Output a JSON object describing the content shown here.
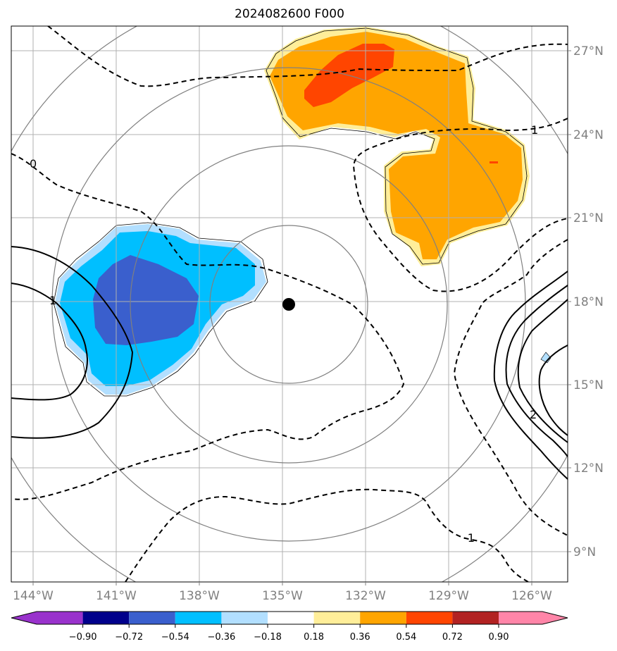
{
  "title": "2024082600 F000",
  "x_ticks": [
    "144°W",
    "141°W",
    "138°W",
    "135°W",
    "132°W",
    "129°W",
    "126°W"
  ],
  "y_ticks": [
    "27°N",
    "24°N",
    "21°N",
    "18°N",
    "15°N",
    "12°N",
    "9°N"
  ],
  "contour_labels": [
    "0",
    "1",
    "1",
    "2",
    "-1"
  ],
  "colorbar": {
    "tick_labels": [
      "−0.90",
      "−0.72",
      "−0.54",
      "−0.36",
      "−0.18",
      "0.18",
      "0.36",
      "0.54",
      "0.72",
      "0.90"
    ],
    "colors": [
      "#9932cc",
      "#00008b",
      "#3a5fcd",
      "#00bfff",
      "#b2dfff",
      "#ffffff",
      "#ffee99",
      "#ffa500",
      "#ff4500",
      "#b22222",
      "#ff85a8"
    ]
  },
  "storm_center_marker": "black-dot",
  "range_rings": 4
}
